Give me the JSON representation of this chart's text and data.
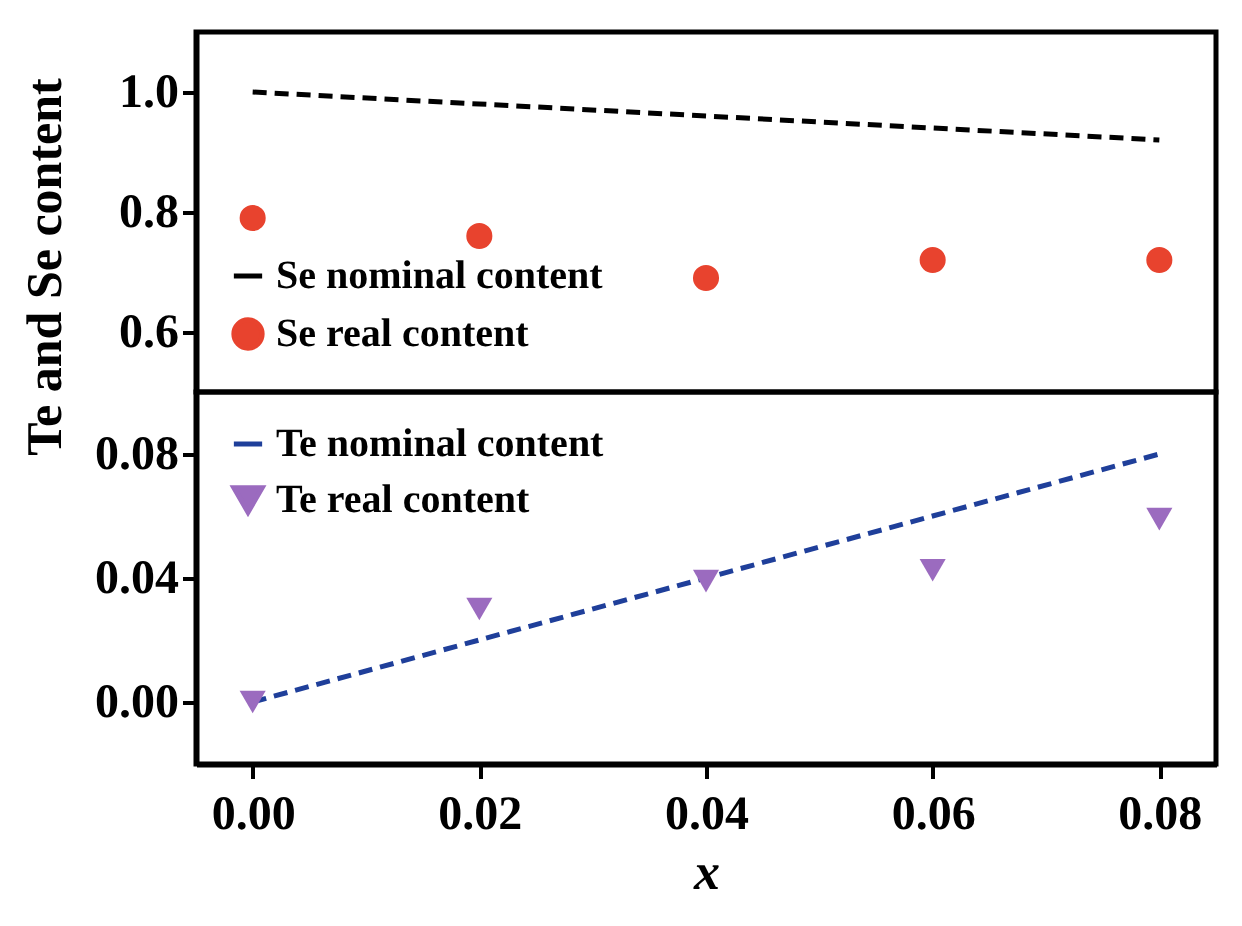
{
  "chart_data": [
    {
      "type": "scatter",
      "x": [
        0,
        0.02,
        0.04,
        0.06,
        0.08
      ],
      "xlim": [
        -0.005,
        0.085
      ],
      "ylim": [
        0.5,
        1.1
      ],
      "yticks": [
        {
          "value": 0.6,
          "label": "0.6"
        },
        {
          "value": 0.8,
          "label": "0.8"
        },
        {
          "value": 1,
          "label": "1.0"
        }
      ],
      "tick_labels": "y",
      "legend": "bottom left",
      "series": [
        {
          "name": "Se nominal content",
          "type": "line",
          "line_style": "dashed",
          "color": "#000000",
          "values": [
            1.0,
            0.98,
            0.96,
            0.94,
            0.92
          ]
        },
        {
          "name": "Se real content",
          "type": "scatter",
          "marker": "circle",
          "color": "#e8432e",
          "values": [
            0.79,
            0.76,
            0.69,
            0.72,
            0.72
          ]
        }
      ]
    },
    {
      "type": "scatter",
      "x": [
        0,
        0.02,
        0.04,
        0.06,
        0.08
      ],
      "xlim": [
        -0.005,
        0.085
      ],
      "xticks": [
        {
          "value": 0,
          "label": "0.00"
        },
        {
          "value": 0.02,
          "label": "0.02"
        },
        {
          "value": 0.04,
          "label": "0.04"
        },
        {
          "value": 0.06,
          "label": "0.06"
        },
        {
          "value": 0.08,
          "label": "0.08"
        }
      ],
      "ylim": [
        -0.02,
        0.1
      ],
      "yticks": [
        {
          "value": 0,
          "label": "0.00"
        },
        {
          "value": 0.04,
          "label": "0.04"
        },
        {
          "value": 0.08,
          "label": "0.08"
        }
      ],
      "xlabel": "x",
      "ylabel": "Te and Se content",
      "legend": "top left",
      "series": [
        {
          "name": "Te nominal content",
          "type": "line",
          "line_style": "dashed",
          "color": "#1f3f9a",
          "values": [
            0,
            0.02,
            0.04,
            0.06,
            0.08
          ]
        },
        {
          "name": "Te real content",
          "type": "scatter",
          "marker": "triangle",
          "color": "#9b6bbf",
          "values": [
            0,
            0.03,
            0.039,
            0.0425,
            0.059
          ]
        }
      ]
    }
  ]
}
